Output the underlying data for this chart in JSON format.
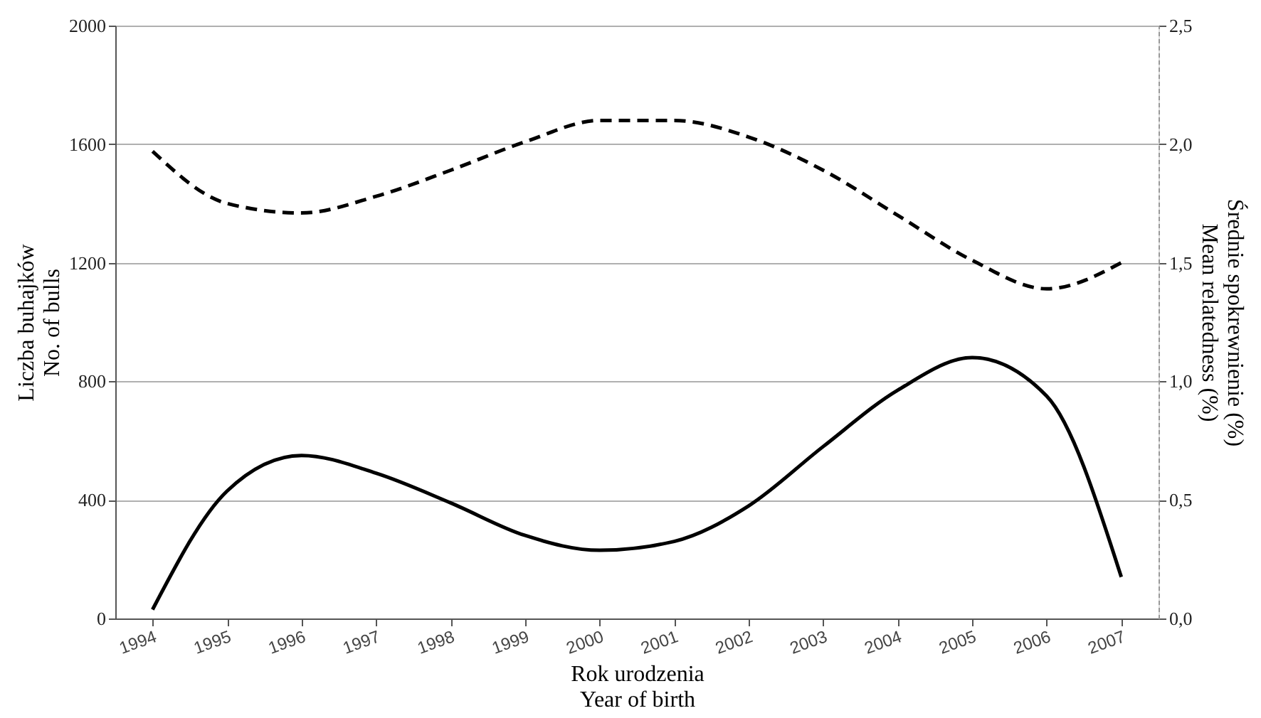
{
  "chart_data": {
    "type": "line",
    "xlabel": "Rok urodzenia\nYear of birth",
    "ylabel": "Liczba buhajków\nNo. of bulls",
    "y2label": "Średnie spokrewnienie (%)\nMean relatedness (%)",
    "categories": [
      "1994",
      "1995",
      "1996",
      "1997",
      "1998",
      "1999",
      "2000",
      "2001",
      "2002",
      "2003",
      "2004",
      "2005",
      "2006",
      "2007"
    ],
    "series": [
      {
        "color": "#000000",
        "line_style": "solid",
        "values": [
          30,
          430,
          550,
          490,
          390,
          280,
          230,
          260,
          380,
          580,
          770,
          880,
          750,
          140
        ]
      },
      {
        "color": "#000000",
        "line_style": "dashed",
        "axis": "y2",
        "values": [
          1.97,
          1.75,
          1.71,
          1.78,
          1.89,
          2.01,
          2.1,
          2.1,
          2.03,
          1.89,
          1.7,
          1.51,
          1.39,
          1.5
        ]
      }
    ],
    "ylim": [
      0,
      2000
    ],
    "yticks": [
      0,
      400,
      800,
      1200,
      1600,
      2000
    ],
    "y2lim": [
      0,
      2.5
    ],
    "y2ticks": [
      {
        "value": 0,
        "label": "0,0"
      },
      {
        "value": 0.5,
        "label": "0,5"
      },
      {
        "value": 1,
        "label": "1,0"
      },
      {
        "value": 1.5,
        "label": "1,5"
      },
      {
        "value": 2,
        "label": "2,0"
      },
      {
        "value": 2.5,
        "label": "2,5"
      }
    ],
    "grid": "y",
    "marker": "none"
  }
}
